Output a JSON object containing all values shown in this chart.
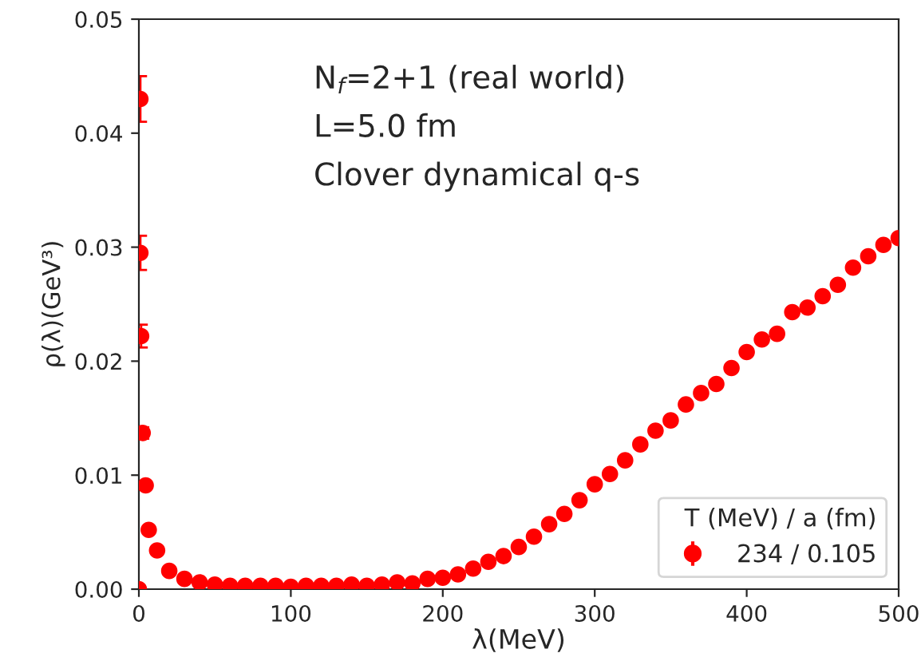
{
  "chart_data": {
    "type": "scatter",
    "xlabel": "λ(MeV)",
    "ylabel": "ρ(λ)(GeV³)",
    "annotations": [
      "N$_{f}$=2+1 (real world)",
      "L=5.0 fm",
      "Clover dynamical q-s"
    ],
    "legend_title": "T (MeV) / a (fm)",
    "legend": "bottom right",
    "marker": "circle",
    "grid": false,
    "xlim": [
      0,
      500
    ],
    "xticks": [
      0,
      100,
      200,
      300,
      400,
      500
    ],
    "ylim": [
      0,
      0.05
    ],
    "yticks": [
      {
        "value": 0,
        "label": "0.00"
      },
      {
        "value": 0.01,
        "label": "0.01"
      },
      {
        "value": 0.02,
        "label": "0.02"
      },
      {
        "value": 0.03,
        "label": "0.03"
      },
      {
        "value": 0.04,
        "label": "0.04"
      },
      {
        "value": 0.05,
        "label": "0.05"
      }
    ],
    "series": [
      {
        "name": "234 / 0.105",
        "color": "#ff0000",
        "x": [
          0,
          1,
          1,
          1.5,
          2.5,
          4.5,
          6.5,
          12,
          20,
          30,
          40,
          50,
          60,
          70,
          80,
          90,
          100,
          110,
          120,
          130,
          140,
          150,
          160,
          170,
          180,
          190,
          200,
          210,
          220,
          230,
          240,
          250,
          260,
          270,
          280,
          290,
          300,
          310,
          320,
          330,
          340,
          350,
          360,
          370,
          380,
          390,
          400,
          410,
          420,
          430,
          440,
          450,
          460,
          470,
          480,
          490,
          500
        ],
        "values": [
          0,
          0.043,
          0.0295,
          0.0222,
          0.0137,
          0.0091,
          0.0052,
          0.0034,
          0.0016,
          0.0009,
          0.0006,
          0.0004,
          0.0003,
          0.0003,
          0.0003,
          0.0003,
          0.0002,
          0.0003,
          0.0003,
          0.0003,
          0.0004,
          0.0003,
          0.0004,
          0.0006,
          0.0005,
          0.0009,
          0.001,
          0.0013,
          0.0018,
          0.0024,
          0.0029,
          0.0037,
          0.0046,
          0.0057,
          0.0066,
          0.0078,
          0.0092,
          0.0101,
          0.0113,
          0.0127,
          0.0139,
          0.0148,
          0.0162,
          0.0172,
          0.018,
          0.0194,
          0.0208,
          0.0219,
          0.0224,
          0.0243,
          0.0247,
          0.0257,
          0.0267,
          0.0282,
          0.0292,
          0.0302,
          0.0308
        ],
        "errors": [
          null,
          0.002,
          0.0015,
          0.001,
          0.0005,
          null,
          null,
          null,
          null,
          null,
          null,
          null,
          null,
          null,
          null,
          null,
          null,
          null,
          null,
          null,
          null,
          null,
          null,
          null,
          null,
          null,
          null,
          null,
          null,
          null,
          null,
          null,
          null,
          null,
          null,
          null,
          null,
          null,
          null,
          null,
          null,
          null,
          null,
          null,
          null,
          null,
          null,
          null,
          null,
          null,
          null,
          null,
          null,
          null,
          null,
          null,
          null
        ]
      }
    ]
  }
}
